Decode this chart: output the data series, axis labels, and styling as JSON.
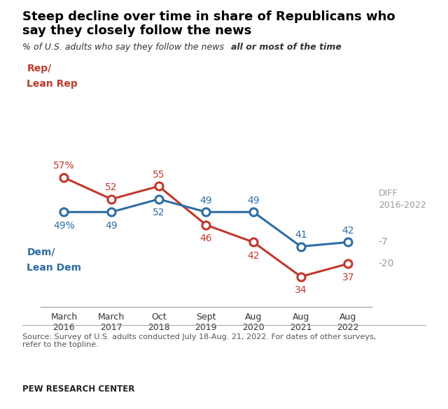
{
  "title_line1": "Steep decline over time in share of Republicans who",
  "title_line2": "say they closely follow the news",
  "subtitle_regular": "% of U.S. adults who say they follow the news ",
  "subtitle_bold": "all or most of the time",
  "x_labels": [
    "March\n2016",
    "March\n2017",
    "Oct\n2018",
    "Sept\n2019",
    "Aug\n2020",
    "Aug\n2021",
    "Aug\n2022"
  ],
  "rep_values": [
    57,
    52,
    55,
    46,
    42,
    34,
    37
  ],
  "dem_values": [
    49,
    49,
    52,
    49,
    49,
    41,
    42
  ],
  "rep_color": "#c0392b",
  "dem_color": "#2e6da4",
  "diff_color": "#999999",
  "rep_label_line1": "Rep/",
  "rep_label_line2": "Lean Rep",
  "dem_label_line1": "Dem/",
  "dem_label_line2": "Lean Dem",
  "diff_header": "DIFF\n2016-2022",
  "rep_diff": "-20",
  "dem_diff": "-7",
  "source_text": "Source: Survey of U.S. adults conducted July 18-Aug. 21, 2022. For dates of other surveys,\nrefer to the topline.",
  "footer_text": "PEW RESEARCH CENTER",
  "ylim": [
    27,
    65
  ],
  "background_color": "#ffffff"
}
